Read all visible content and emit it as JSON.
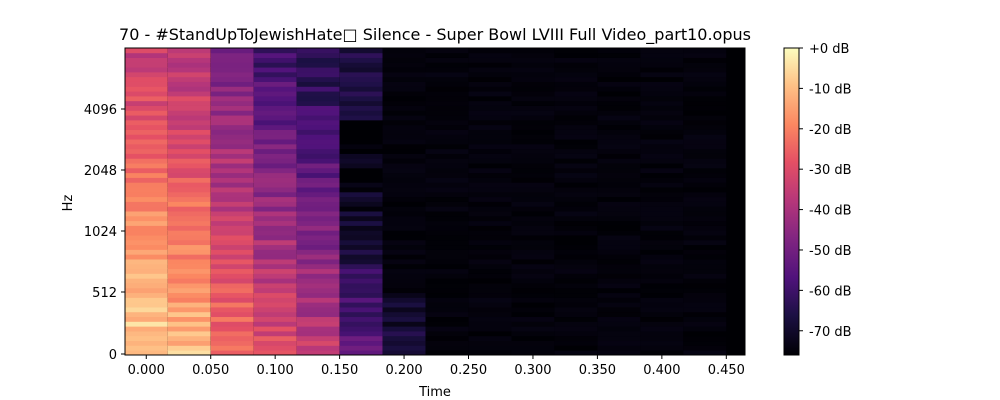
{
  "chart_data": {
    "type": "heatmap",
    "title": "70 - #StandUpToJewishHate□ Silence - Super Bowl LVIII Full Video_part10.opus",
    "xlabel": "Time",
    "ylabel": "Hz",
    "xlim": [
      -0.0165,
      0.4645
    ],
    "x_ticks": [
      0.0,
      0.05,
      0.1,
      0.15,
      0.2,
      0.25,
      0.3,
      0.35,
      0.4,
      0.45
    ],
    "x_tick_labels": [
      "0.000",
      "0.050",
      "0.100",
      "0.150",
      "0.200",
      "0.250",
      "0.300",
      "0.350",
      "0.400",
      "0.450"
    ],
    "y_scale": "log2",
    "y_ticks": [
      0,
      512,
      1024,
      2048,
      4096
    ],
    "y_tick_labels": [
      "0",
      "512",
      "1024",
      "2048",
      "4096"
    ],
    "frame_times": [
      0.0,
      0.0333,
      0.0667,
      0.1,
      0.1333,
      0.1667,
      0.2,
      0.2333,
      0.2667,
      0.3,
      0.3333,
      0.3667,
      0.4,
      0.4333
    ],
    "active_frames": 6,
    "colorbar": {
      "range_db": [
        -76,
        0
      ],
      "ticks_db": [
        0,
        -10,
        -20,
        -30,
        -40,
        -50,
        -60,
        -70
      ],
      "tick_labels": [
        "+0 dB",
        "-10 dB",
        "-20 dB",
        "-30 dB",
        "-40 dB",
        "-50 dB",
        "-60 dB",
        "-70 dB"
      ]
    },
    "colormap": "magma",
    "grid": false
  }
}
